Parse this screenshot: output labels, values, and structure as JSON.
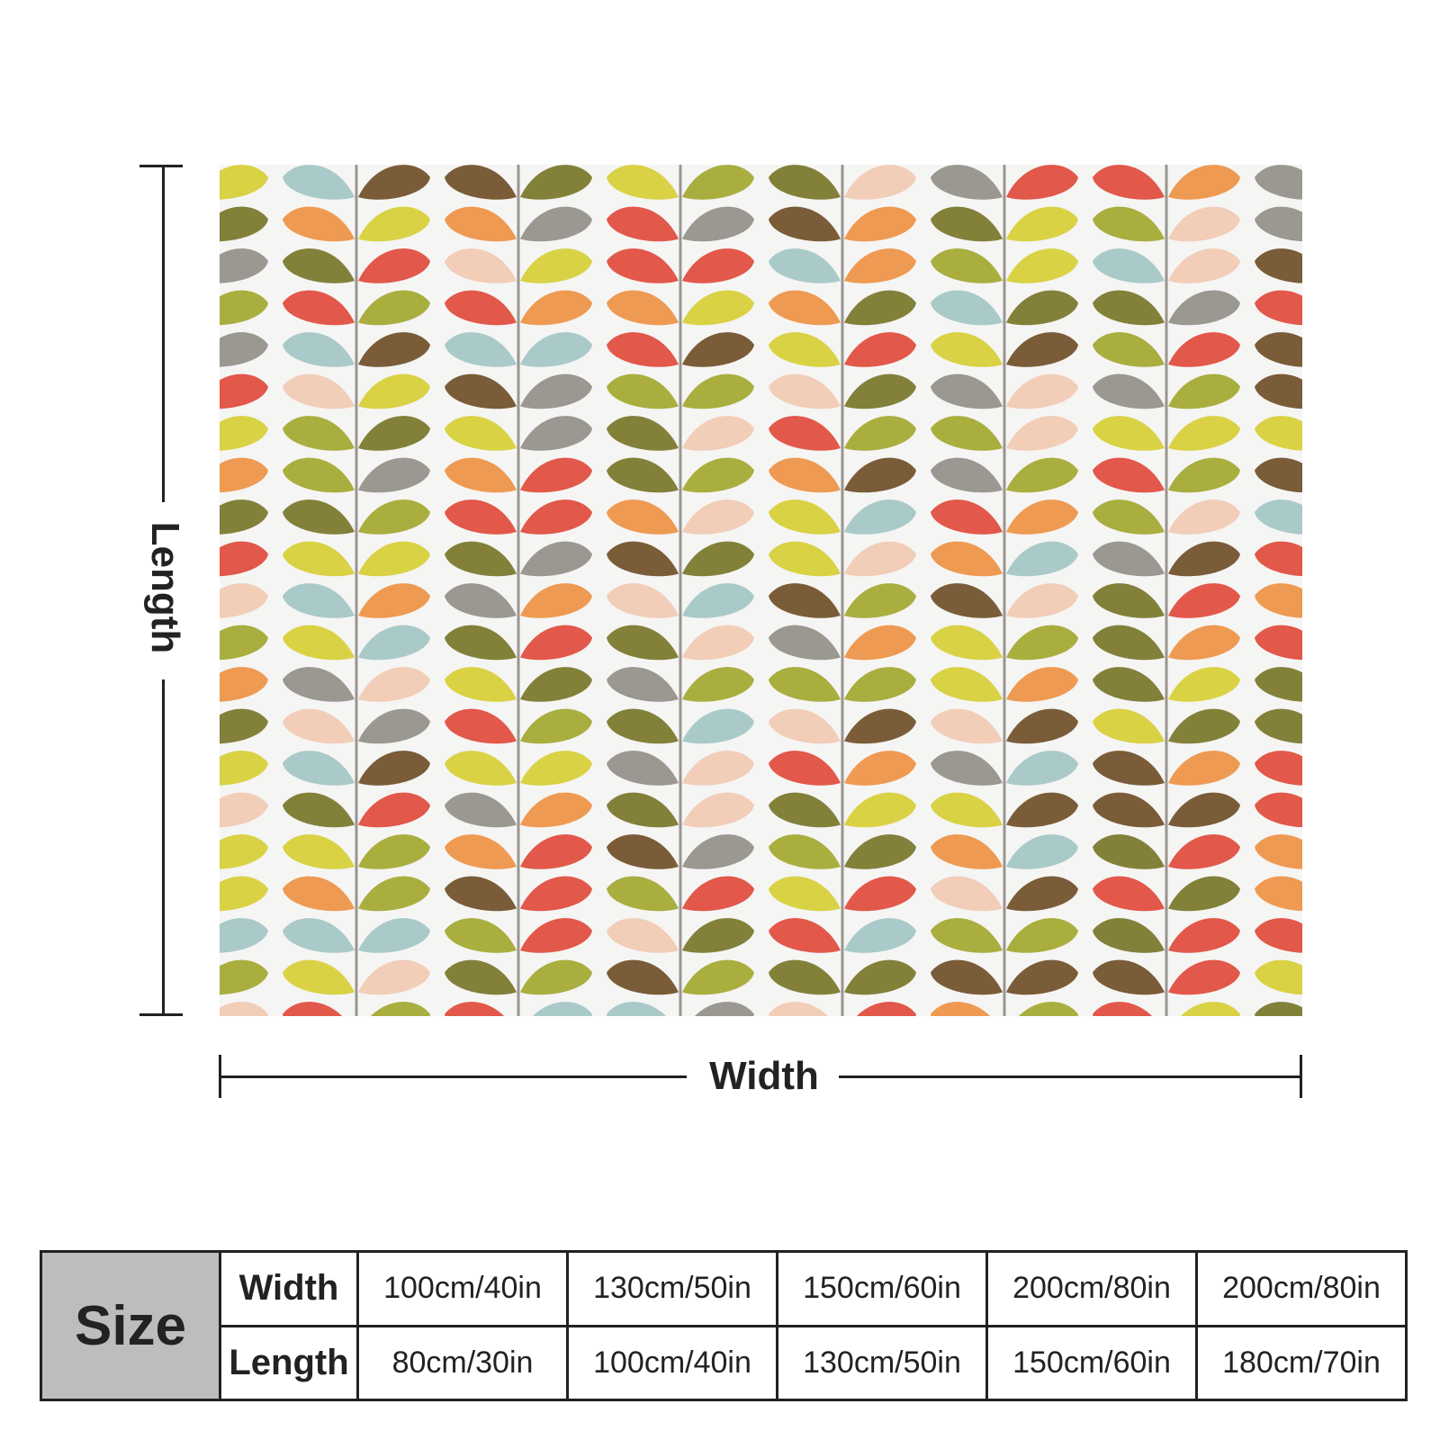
{
  "diagram": {
    "length_label": "Length",
    "width_label": "Width"
  },
  "pattern": {
    "description_icon": "leaf-stem-pattern",
    "colors": [
      "#e2584a",
      "#ef9a52",
      "#d9d244",
      "#a9ae3f",
      "#83803a",
      "#7a5c38",
      "#a9cac8",
      "#9b9791",
      "#f2cdb8"
    ]
  },
  "size_table": {
    "title": "Size",
    "rows": [
      {
        "label": "Width",
        "values": [
          "100cm/40in",
          "130cm/50in",
          "150cm/60in",
          "200cm/80in",
          "200cm/80in"
        ]
      },
      {
        "label": "Length",
        "values": [
          "80cm/30in",
          "100cm/40in",
          "130cm/50in",
          "150cm/60in",
          "180cm/70in"
        ]
      }
    ]
  }
}
